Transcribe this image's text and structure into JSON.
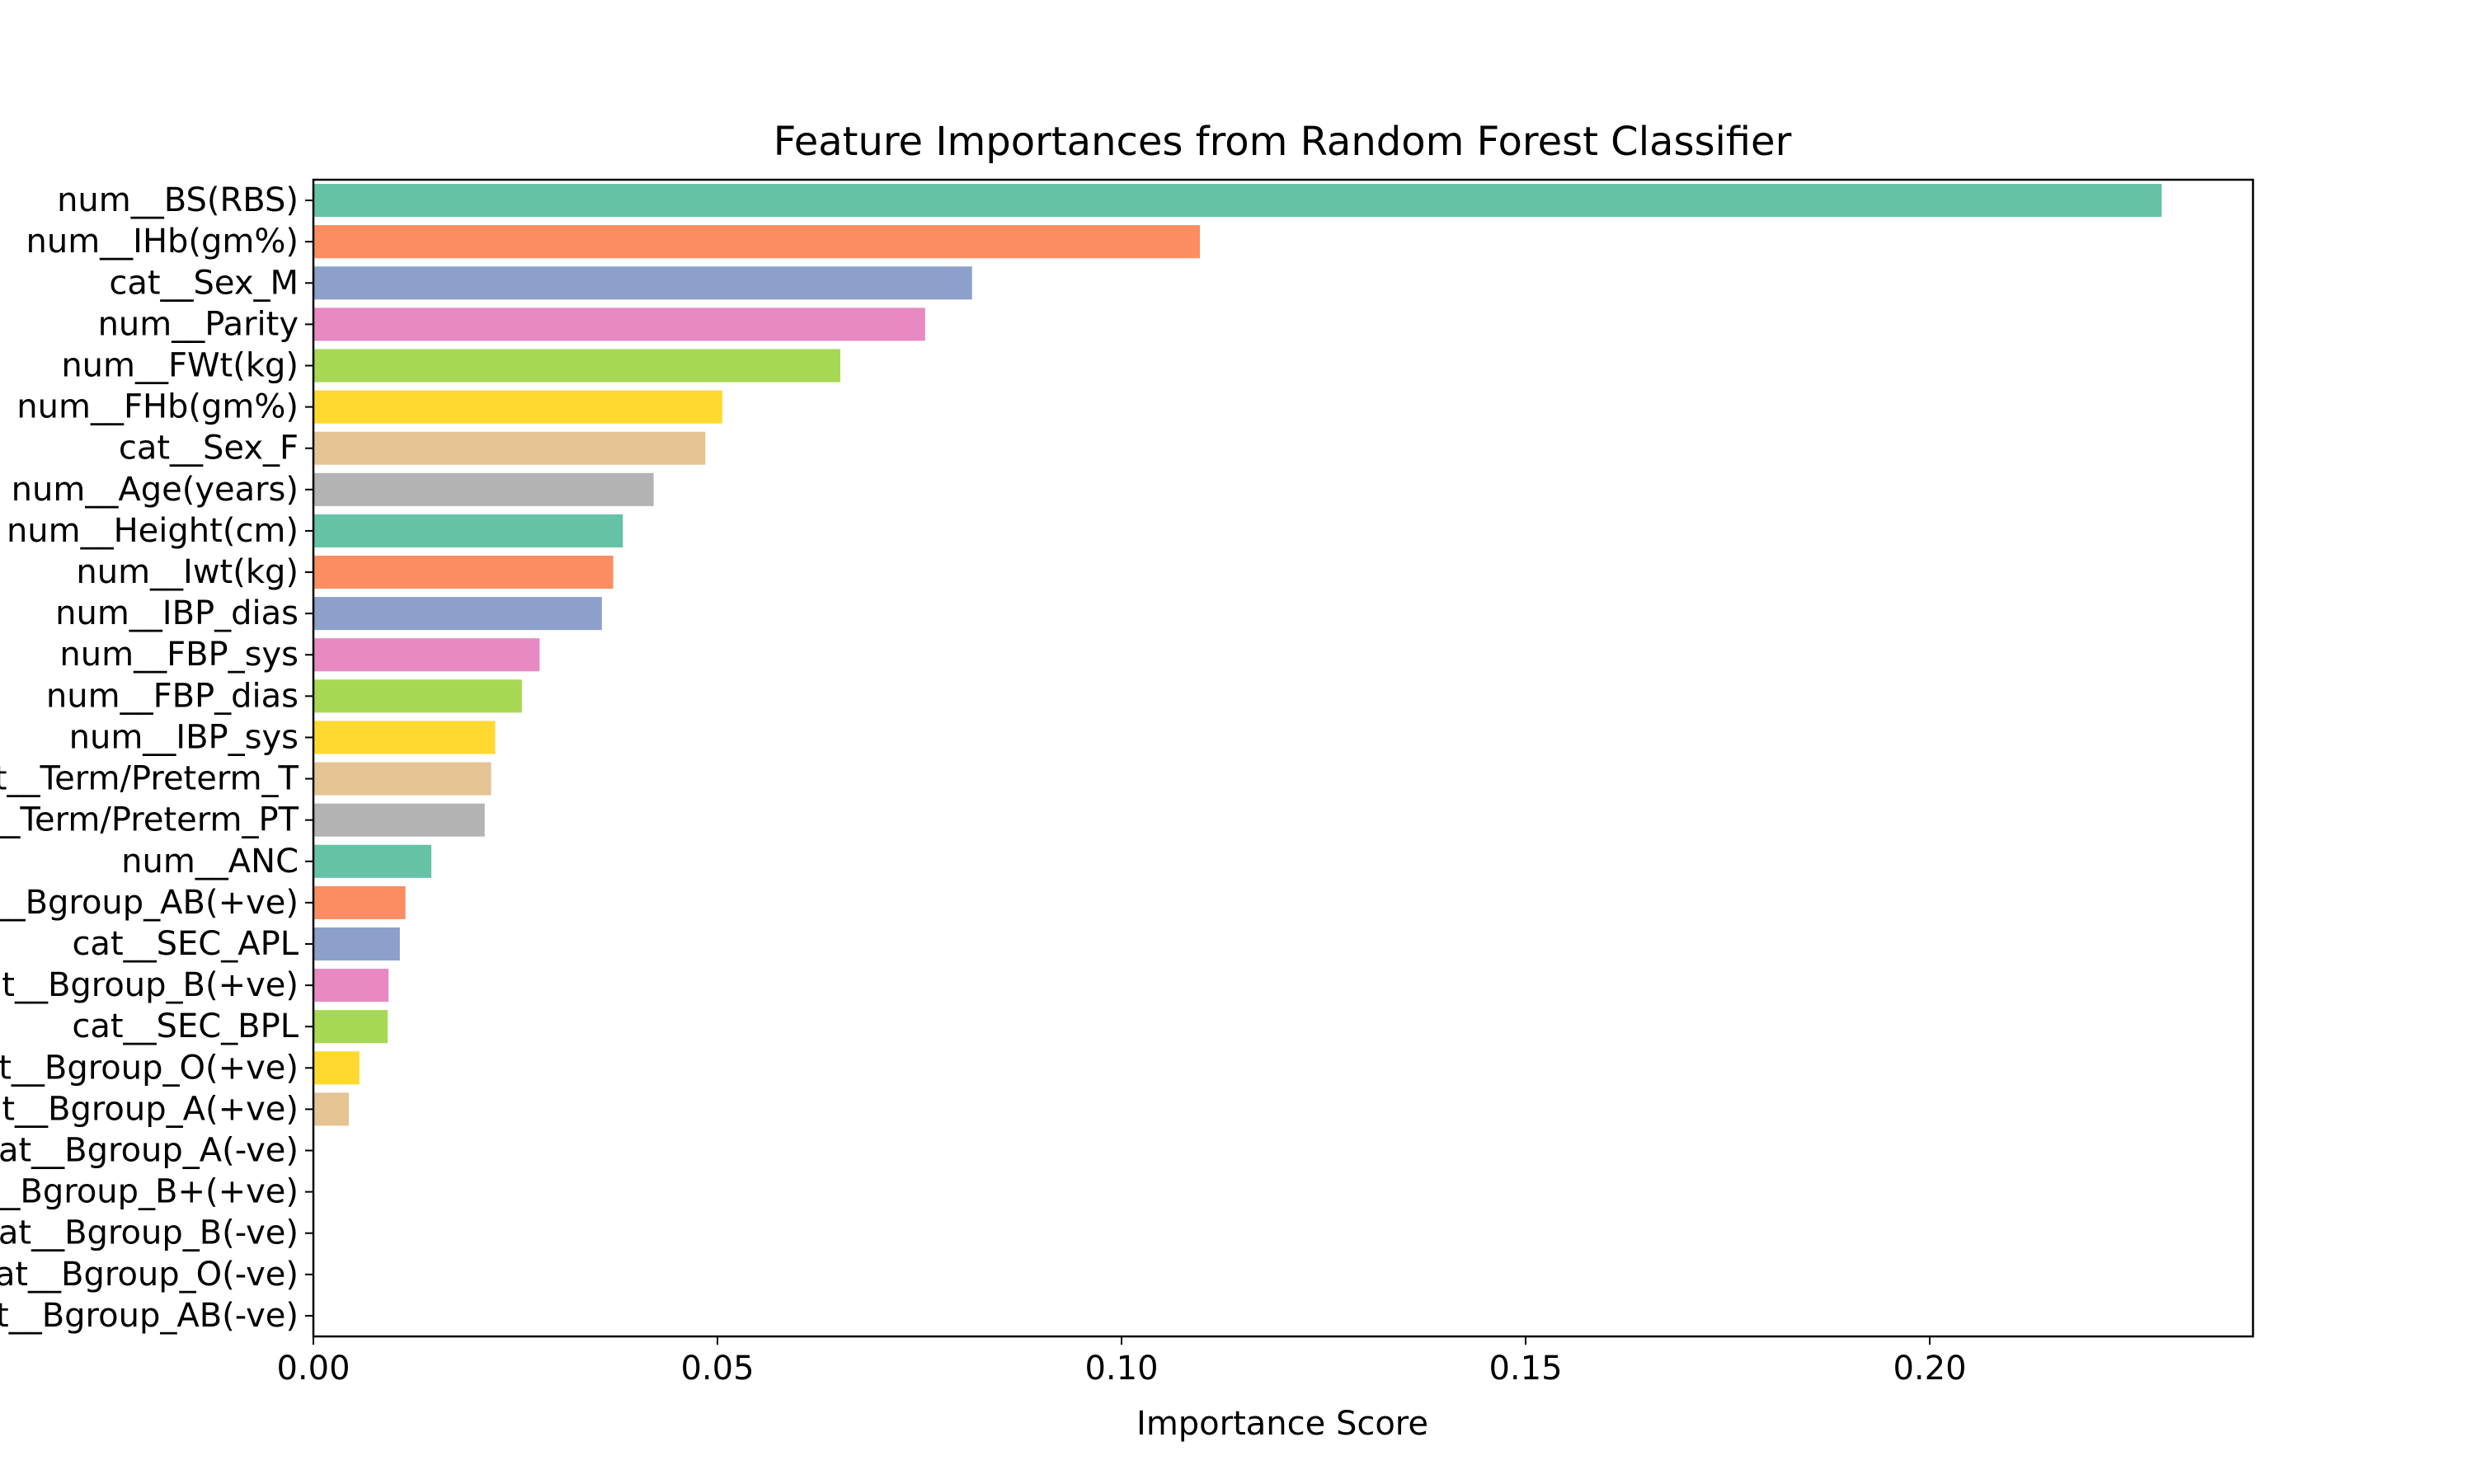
{
  "chart_data": {
    "type": "bar",
    "orientation": "horizontal",
    "title": "Feature Importances from Random Forest Classifier",
    "xlabel": "Importance Score",
    "ylabel": "",
    "xlim": [
      0,
      0.24
    ],
    "xticks": [
      "0.00",
      "0.05",
      "0.10",
      "0.15",
      "0.20"
    ],
    "grid": false,
    "legend": "none",
    "palette": [
      "#66c2a5",
      "#fc8d62",
      "#8da0cb",
      "#e78ac3",
      "#a6d854",
      "#ffd92f",
      "#e5c494",
      "#b3b3b3"
    ],
    "categories": [
      "num__BS(RBS)",
      "num__IHb(gm%)",
      "cat__Sex_M",
      "num__Parity",
      "num__FWt(kg)",
      "num__FHb(gm%)",
      "cat__Sex_F",
      "num__Age(years)",
      "num__Height(cm)",
      "num__Iwt(kg)",
      "num__IBP_dias",
      "num__FBP_sys",
      "num__FBP_dias",
      "num__IBP_sys",
      "cat__Term/Preterm_T",
      "cat__Term/Preterm_PT",
      "num__ANC",
      "cat__Bgroup_AB(+ve)",
      "cat__SEC_APL",
      "cat__Bgroup_B(+ve)",
      "cat__SEC_BPL",
      "cat__Bgroup_O(+ve)",
      "cat__Bgroup_A(+ve)",
      "cat__Bgroup_A(-ve)",
      "cat__Bgroup_B+(+ve)",
      "cat__Bgroup_B(-ve)",
      "cat__Bgroup_O(-ve)",
      "cat__Bgroup_AB(-ve)"
    ],
    "values": [
      0.2287,
      0.1097,
      0.0815,
      0.0757,
      0.0652,
      0.0506,
      0.0485,
      0.0421,
      0.0383,
      0.0371,
      0.0357,
      0.028,
      0.0258,
      0.0225,
      0.022,
      0.0212,
      0.0146,
      0.0114,
      0.0107,
      0.0093,
      0.0092,
      0.0057,
      0.0044,
      0.0,
      0.0,
      0.0,
      0.0,
      0.0
    ]
  }
}
